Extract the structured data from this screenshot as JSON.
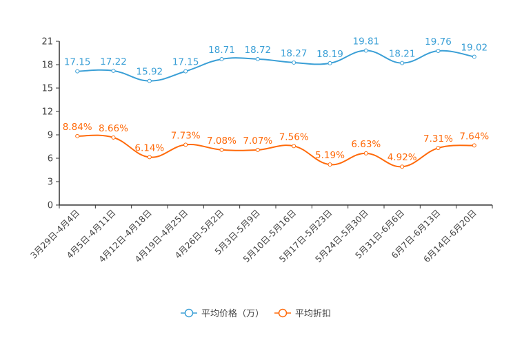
{
  "chart_data": {
    "type": "line",
    "title": "",
    "xlabel": "",
    "ylabel": "",
    "ylim": [
      0,
      21
    ],
    "yticks": [
      0,
      3,
      6,
      9,
      12,
      15,
      18,
      21
    ],
    "grid": false,
    "legend_position": "bottom-center",
    "categories": [
      "3月29日-4月4日",
      "4月5日-4月11日",
      "4月12日-4月18日",
      "4月19日-4月25日",
      "4月26日-5月2日",
      "5月3日-5月9日",
      "5月10日-5月16日",
      "5月17日-5月23日",
      "5月24日-5月30日",
      "5月31日-6月6日",
      "6月7日-6月13日",
      "6月14日-6月20日"
    ],
    "series": [
      {
        "name": "平均价格（万）",
        "color": "#3a9fd6",
        "values": [
          17.15,
          17.22,
          15.92,
          17.15,
          18.71,
          18.72,
          18.27,
          18.19,
          19.81,
          18.21,
          19.76,
          19.02
        ],
        "labels": [
          "17.15",
          "17.22",
          "15.92",
          "17.15",
          "18.71",
          "18.72",
          "18.27",
          "18.19",
          "19.81",
          "18.21",
          "19.76",
          "19.02"
        ]
      },
      {
        "name": "平均折扣",
        "color": "#ff6a0a",
        "values": [
          8.84,
          8.66,
          6.14,
          7.73,
          7.08,
          7.07,
          7.56,
          5.19,
          6.63,
          4.92,
          7.31,
          7.64
        ],
        "labels": [
          "8.84%",
          "8.66%",
          "6.14%",
          "7.73%",
          "7.08%",
          "7.07%",
          "7.56%",
          "5.19%",
          "6.63%",
          "4.92%",
          "7.31%",
          "7.64%"
        ]
      }
    ]
  }
}
